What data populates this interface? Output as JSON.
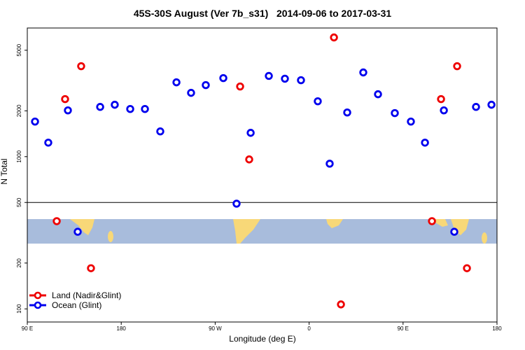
{
  "chart_data": {
    "type": "scatter",
    "title": "45S-30S August (Ver 7b_s31)   2014-09-06 to 2017-03-31",
    "x_label": "Longitude (deg E)",
    "y_label": "N Total",
    "log_y": true,
    "xlim": [
      90,
      540
    ],
    "ylim": [
      82,
      7000
    ],
    "xticks": [
      {
        "value": 90,
        "label": "90 E"
      },
      180,
      {
        "value": 270,
        "label": "90 W"
      },
      {
        "value": 360,
        "label": "0"
      },
      {
        "value": 450,
        "label": "90 E"
      },
      {
        "value": 540,
        "label": "180"
      }
    ],
    "yticks": [
      100,
      200,
      500,
      1000,
      2000,
      5000
    ],
    "hline": 500,
    "legend": "bottom-left",
    "series": [
      {
        "name": "Land (Nadir&Glint)",
        "color": "#ee0000",
        "x": [
          118.2,
          126.2,
          141.6,
          151.0,
          293.9,
          302.6,
          383.8,
          390.5,
          477.7,
          486.4,
          501.8,
          511.2
        ],
        "values": [
          377,
          2388,
          3929,
          185,
          2890,
          959,
          6067,
          107,
          377,
          2388,
          3929,
          185
        ]
      },
      {
        "name": "Ocean (Glint)",
        "color": "#0000ee",
        "x": [
          97.4,
          110.1,
          128.9,
          138.3,
          159.8,
          173.8,
          188.6,
          202.7,
          217.4,
          232.9,
          246.9,
          261.0,
          277.8,
          290.5,
          304.0,
          321.4,
          336.8,
          352.2,
          368.3,
          379.7,
          396.5,
          411.9,
          426.0,
          442.1,
          457.5,
          471.0,
          489.1,
          499.1,
          519.9,
          534.7
        ],
        "values": [
          1700,
          1236,
          2014,
          321,
          2122,
          2193,
          2056,
          2056,
          1465,
          3077,
          2625,
          2951,
          3281,
          491,
          1434,
          3390,
          3251,
          3178,
          2311,
          899,
          1950,
          3574,
          2570,
          1932,
          1700,
          1236,
          2014,
          321,
          2122,
          2193
        ]
      }
    ]
  }
}
